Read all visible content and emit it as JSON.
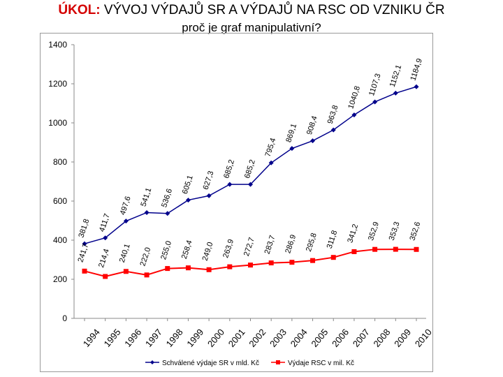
{
  "title_prefix": "ÚKOL:",
  "title_rest": " VÝVOJ VÝDAJŮ SR  A VÝDAJŮ NA RSC OD VZNIKU ČR",
  "subtitle": "proč je graf manipulativní?",
  "chart_data": {
    "type": "line",
    "title": "",
    "xlabel": "",
    "ylabel": "",
    "ylim": [
      0,
      1400
    ],
    "yticks": [
      0,
      200,
      400,
      600,
      800,
      1000,
      1200,
      1400
    ],
    "grid": false,
    "legend_position": "bottom",
    "categories": [
      "1994",
      "1995",
      "1996",
      "1997",
      "1998",
      "1999",
      "2000",
      "2001",
      "2002",
      "2003",
      "2004",
      "2005",
      "2006",
      "2007",
      "2008",
      "2009",
      "2010"
    ],
    "series": [
      {
        "name": "Schválené výdaje SR v mld. Kč",
        "color": "#00008b",
        "marker": "diamond",
        "values": [
          381.8,
          411.7,
          497.6,
          541.1,
          536.6,
          605.1,
          627.3,
          685.2,
          685.2,
          795.4,
          869.1,
          908.4,
          963.8,
          1040.8,
          1107.3,
          1152.1,
          1184.9
        ],
        "labels": [
          "381,8",
          "411,7",
          "497,6",
          "541,1",
          "536,6",
          "605,1",
          "627,3",
          "685,2",
          "685,2",
          "795,4",
          "869,1",
          "908,4",
          "963,8",
          "1040,8",
          "1107,3",
          "1152,1",
          "1184,9"
        ]
      },
      {
        "name": "Výdaje RSC v mil. Kč",
        "color": "#ff0000",
        "marker": "square",
        "values": [
          241.7,
          214.4,
          240.1,
          222.0,
          255.0,
          258.4,
          249.0,
          263.9,
          272.7,
          283.7,
          286.9,
          295.8,
          311.8,
          341.2,
          352.9,
          353.3,
          352.6
        ],
        "labels": [
          "241,7",
          "214,4",
          "240,1",
          "222,0",
          "255,0",
          "258,4",
          "249,0",
          "263,9",
          "272,7",
          "283,7",
          "286,9",
          "295,8",
          "311,8",
          "341,2",
          "352,9",
          "353,3",
          "352,6"
        ]
      }
    ]
  }
}
